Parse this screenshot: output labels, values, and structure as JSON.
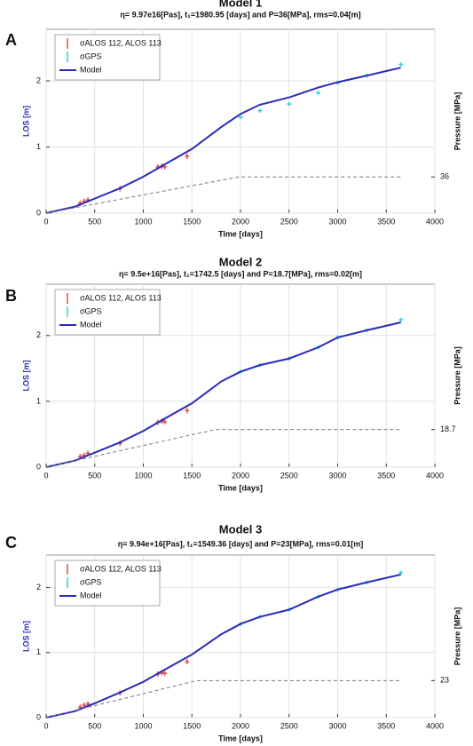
{
  "chart_data": [
    {
      "type": "line",
      "panel": "A",
      "title": "Model 1",
      "subtitle": "η= 9.97e16[Pas], t₁=1980.95 [days] and P=36[MPa], rms=0.04[m]",
      "xlabel": "Time [days]",
      "ylabel": "LOS [m]",
      "y2label": "Pressure [MPa]",
      "xlim": [
        0,
        4000
      ],
      "xticks": [
        0,
        500,
        1000,
        1500,
        2000,
        2500,
        3000,
        3500,
        4000
      ],
      "ylim": [
        0,
        2.78
      ],
      "yticks": [
        0,
        1,
        2
      ],
      "y2lim": [
        0,
        183
      ],
      "y2ticks": [
        36
      ],
      "grid": true,
      "legend": "upper left",
      "series": [
        {
          "name": "σALOS 112, ALOS 113",
          "style": "errorbar",
          "color": "#d9534f",
          "x": [
            350,
            390,
            430,
            760,
            1150,
            1190,
            1220,
            1450
          ],
          "values": [
            0.15,
            0.18,
            0.2,
            0.37,
            0.7,
            0.71,
            0.7,
            0.86
          ],
          "errors": [
            0.04,
            0.04,
            0.04,
            0.04,
            0.04,
            0.04,
            0.04,
            0.04
          ]
        },
        {
          "name": "σGPS",
          "style": "errorbar",
          "color": "#2fd4d4",
          "x": [
            2000,
            2200,
            2500,
            2800,
            3000,
            3300,
            3650
          ],
          "values": [
            1.45,
            1.55,
            1.65,
            1.82,
            1.97,
            2.08,
            2.25
          ],
          "errors": [
            0.03,
            0.03,
            0.03,
            0.03,
            0.03,
            0.03,
            0.03
          ]
        },
        {
          "name": "Model",
          "style": "line",
          "color": "#2b2bb8",
          "x": [
            0,
            300,
            500,
            750,
            1000,
            1200,
            1500,
            1800,
            2000,
            2200,
            2500,
            2800,
            3000,
            3300,
            3650
          ],
          "values": [
            0,
            0.1,
            0.22,
            0.37,
            0.55,
            0.72,
            0.97,
            1.3,
            1.5,
            1.64,
            1.75,
            1.9,
            1.98,
            2.08,
            2.2
          ]
        },
        {
          "style": "dashed",
          "axis": "y2",
          "color": "#777777",
          "x": [
            0,
            1980.95,
            3650
          ],
          "values": [
            0,
            36,
            36
          ]
        }
      ]
    },
    {
      "type": "line",
      "panel": "B",
      "title": "Model 2",
      "subtitle": "η= 9.5e+16[Pas], t₁=1742.5 [days] and P=18.7[MPa], rms=0.02[m]",
      "xlabel": "Time [days]",
      "ylabel": "LOS [m]",
      "y2label": "Pressure [MPa]",
      "xlim": [
        0,
        4000
      ],
      "xticks": [
        0,
        500,
        1000,
        1500,
        2000,
        2500,
        3000,
        3500,
        4000
      ],
      "ylim": [
        0,
        2.78
      ],
      "yticks": [
        0,
        1,
        2
      ],
      "y2lim": [
        0,
        91
      ],
      "y2ticks": [
        18.7
      ],
      "grid": true,
      "legend": "upper left",
      "series": [
        {
          "name": "σALOS 112, ALOS 113",
          "style": "errorbar",
          "color": "#d9534f",
          "x": [
            350,
            390,
            430,
            760,
            1150,
            1190,
            1220,
            1450
          ],
          "values": [
            0.16,
            0.18,
            0.21,
            0.36,
            0.68,
            0.7,
            0.69,
            0.86
          ],
          "errors": [
            0.04,
            0.04,
            0.04,
            0.04,
            0.04,
            0.04,
            0.04,
            0.04
          ]
        },
        {
          "name": "σGPS",
          "style": "errorbar",
          "color": "#2fd4d4",
          "x": [
            2000,
            2200,
            2500,
            2800,
            3000,
            3300,
            3650
          ],
          "values": [
            1.45,
            1.55,
            1.65,
            1.82,
            1.97,
            2.08,
            2.24
          ],
          "errors": [
            0.03,
            0.03,
            0.03,
            0.03,
            0.03,
            0.03,
            0.03
          ]
        },
        {
          "name": "Model",
          "style": "line",
          "color": "#2b2bb8",
          "x": [
            0,
            300,
            500,
            750,
            1000,
            1200,
            1500,
            1800,
            2000,
            2200,
            2500,
            2800,
            3000,
            3300,
            3650
          ],
          "values": [
            0,
            0.1,
            0.22,
            0.37,
            0.55,
            0.72,
            0.97,
            1.3,
            1.45,
            1.55,
            1.65,
            1.82,
            1.97,
            2.08,
            2.2
          ]
        },
        {
          "style": "dashed",
          "axis": "y2",
          "color": "#777777",
          "x": [
            0,
            1742.5,
            3650
          ],
          "values": [
            0,
            18.7,
            18.7
          ]
        }
      ]
    },
    {
      "type": "line",
      "panel": "C",
      "title": "Model 3",
      "subtitle": "η= 9.94e+16[Pas], t₁=1549.36 [days] and P=23[MPa], rms=0.01[m]",
      "xlabel": "Time [days]",
      "ylabel": "LOS [m]",
      "y2label": "Pressure [MPa]",
      "xlim": [
        0,
        4000
      ],
      "xticks": [
        0,
        500,
        1000,
        1500,
        2000,
        2500,
        3000,
        3500,
        4000
      ],
      "ylim": [
        0,
        2.5
      ],
      "yticks": [
        0,
        1,
        2
      ],
      "y2lim": [
        0,
        101
      ],
      "y2ticks": [
        23
      ],
      "grid": true,
      "legend": "upper left",
      "series": [
        {
          "name": "σALOS 112, ALOS 113",
          "style": "errorbar",
          "color": "#d9534f",
          "x": [
            350,
            390,
            430,
            760,
            1150,
            1190,
            1220,
            1450
          ],
          "values": [
            0.16,
            0.19,
            0.21,
            0.38,
            0.67,
            0.69,
            0.68,
            0.86
          ],
          "errors": [
            0.04,
            0.04,
            0.04,
            0.04,
            0.04,
            0.04,
            0.04,
            0.04
          ]
        },
        {
          "name": "σGPS",
          "style": "errorbar",
          "color": "#2fd4d4",
          "x": [
            2000,
            2200,
            2500,
            2800,
            3000,
            3300,
            3650
          ],
          "values": [
            1.44,
            1.55,
            1.66,
            1.86,
            1.97,
            2.08,
            2.23
          ],
          "errors": [
            0.03,
            0.03,
            0.03,
            0.03,
            0.03,
            0.03,
            0.03
          ]
        },
        {
          "name": "Model",
          "style": "line",
          "color": "#2b2bb8",
          "x": [
            0,
            300,
            500,
            750,
            1000,
            1200,
            1500,
            1800,
            2000,
            2200,
            2500,
            2800,
            3000,
            3300,
            3650
          ],
          "values": [
            0,
            0.1,
            0.22,
            0.38,
            0.55,
            0.72,
            0.97,
            1.28,
            1.44,
            1.55,
            1.66,
            1.86,
            1.97,
            2.08,
            2.2
          ]
        },
        {
          "style": "dashed",
          "axis": "y2",
          "color": "#777777",
          "x": [
            0,
            1549.36,
            3650
          ],
          "values": [
            0,
            23,
            23
          ]
        }
      ]
    }
  ]
}
